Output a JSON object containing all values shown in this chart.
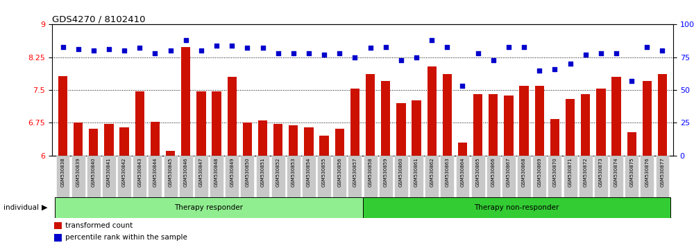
{
  "title": "GDS4270 / 8102410",
  "samples": [
    "GSM530838",
    "GSM530839",
    "GSM530840",
    "GSM530841",
    "GSM530842",
    "GSM530843",
    "GSM530844",
    "GSM530845",
    "GSM530846",
    "GSM530847",
    "GSM530848",
    "GSM530849",
    "GSM530850",
    "GSM530851",
    "GSM530852",
    "GSM530853",
    "GSM530854",
    "GSM530855",
    "GSM530856",
    "GSM530857",
    "GSM530858",
    "GSM530859",
    "GSM530860",
    "GSM530861",
    "GSM530862",
    "GSM530863",
    "GSM530864",
    "GSM530865",
    "GSM530866",
    "GSM530867",
    "GSM530868",
    "GSM530869",
    "GSM530870",
    "GSM530871",
    "GSM530872",
    "GSM530873",
    "GSM530874",
    "GSM530875",
    "GSM530876",
    "GSM530877"
  ],
  "bar_values_left": [
    7.82,
    6.75,
    6.62,
    6.72,
    6.65,
    7.47,
    6.78,
    6.1,
    8.48,
    7.47,
    7.47,
    7.8,
    6.75,
    6.8,
    6.72,
    6.7,
    6.65,
    6.45,
    6.62,
    7.53
  ],
  "bar_values_right": [
    62,
    57,
    40,
    42,
    68,
    62,
    10,
    47,
    47,
    46,
    53,
    53,
    28,
    43,
    47,
    51,
    60,
    18,
    57,
    62
  ],
  "percentile_left": [
    83,
    81,
    80,
    81,
    80,
    82,
    78,
    80,
    88,
    80,
    84,
    84,
    82,
    82,
    78,
    78,
    78,
    77,
    78,
    75
  ],
  "percentile_right": [
    82,
    83,
    73,
    75,
    88,
    83,
    53,
    78,
    73,
    83,
    83,
    65,
    66,
    70,
    77,
    78,
    78,
    57,
    83,
    80
  ],
  "responder_count": 20,
  "non_responder_count": 20,
  "ylim_left": [
    6.0,
    9.0
  ],
  "ylim_right": [
    0,
    100
  ],
  "yticks_left": [
    6,
    6.75,
    7.5,
    8.25,
    9
  ],
  "yticks_right": [
    0,
    25,
    50,
    75,
    100
  ],
  "bar_color": "#cc1100",
  "scatter_color": "#0000cc",
  "responder_color": "#90ee90",
  "non_responder_color": "#33cc33",
  "label_bar": "transformed count",
  "label_scatter": "percentile rank within the sample",
  "group_label": "individual"
}
